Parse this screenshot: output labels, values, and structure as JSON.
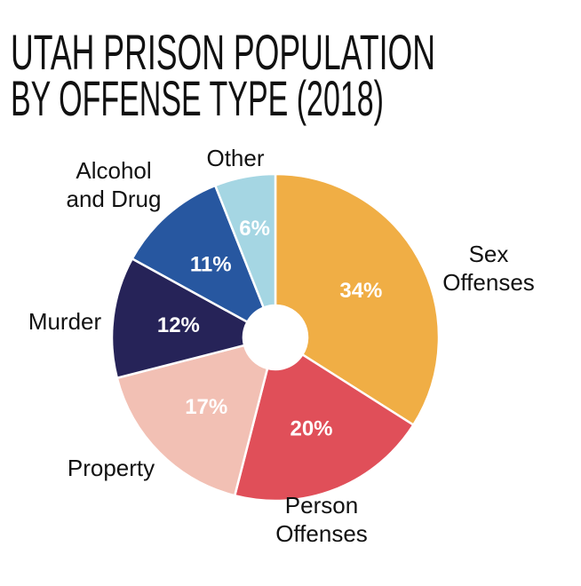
{
  "chart_data": {
    "type": "pie",
    "title": [
      "UTAH PRISON POPULATION",
      "BY OFFENSE TYPE (2018)"
    ],
    "donut": true,
    "start": "top",
    "direction": "clockwise",
    "slices": [
      {
        "label": [
          "Sex",
          "Offenses"
        ],
        "value": 34,
        "display": "34%",
        "color": "#F0AE45"
      },
      {
        "label": [
          "Person",
          "Offenses"
        ],
        "value": 20,
        "display": "20%",
        "color": "#E04F59"
      },
      {
        "label": [
          "Property"
        ],
        "value": 17,
        "display": "17%",
        "color": "#F2C0B4"
      },
      {
        "label": [
          "Murder"
        ],
        "value": 12,
        "display": "12%",
        "color": "#262358"
      },
      {
        "label": [
          "Alcohol",
          "and Drug"
        ],
        "value": 11,
        "display": "11%",
        "color": "#2757A0"
      },
      {
        "label": [
          "Other"
        ],
        "value": 6,
        "display": "6%",
        "color": "#A5D6E3"
      }
    ]
  }
}
